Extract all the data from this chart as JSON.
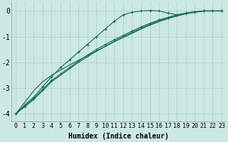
{
  "xlabel": "Humidex (Indice chaleur)",
  "background_color": "#cce8e4",
  "grid_color": "#aacccc",
  "line_color": "#1a6b5a",
  "x_data": [
    0,
    1,
    2,
    3,
    4,
    5,
    6,
    7,
    8,
    9,
    10,
    11,
    12,
    13,
    14,
    15,
    16,
    17,
    18,
    19,
    20,
    21,
    22,
    23
  ],
  "line_steep": [
    -4.0,
    -3.65,
    -3.35,
    -2.95,
    -2.55,
    -2.2,
    -1.9,
    -1.6,
    -1.3,
    -1.0,
    -0.7,
    -0.4,
    -0.15,
    -0.05,
    0.0,
    0.02,
    0.0,
    -0.08,
    -0.15,
    -0.1,
    -0.05,
    0.0,
    0.0,
    0.0
  ],
  "line_linear1": [
    -4.0,
    -3.7,
    -3.4,
    -3.05,
    -2.7,
    -2.45,
    -2.2,
    -1.95,
    -1.72,
    -1.5,
    -1.3,
    -1.12,
    -0.95,
    -0.78,
    -0.62,
    -0.48,
    -0.35,
    -0.25,
    -0.15,
    -0.08,
    -0.03,
    0.0,
    0.0,
    0.0
  ],
  "line_linear2": [
    -4.0,
    -3.72,
    -3.44,
    -3.1,
    -2.75,
    -2.5,
    -2.25,
    -2.0,
    -1.78,
    -1.57,
    -1.37,
    -1.18,
    -1.0,
    -0.83,
    -0.67,
    -0.52,
    -0.38,
    -0.27,
    -0.17,
    -0.09,
    -0.04,
    0.0,
    0.0,
    0.0
  ],
  "line_low": [
    -4.0,
    -3.55,
    -3.1,
    -2.75,
    -2.5,
    -2.3,
    -2.1,
    -1.92,
    -1.74,
    -1.56,
    -1.38,
    -1.2,
    -1.03,
    -0.87,
    -0.7,
    -0.55,
    -0.42,
    -0.3,
    -0.2,
    -0.11,
    -0.05,
    0.0,
    0.0,
    0.0
  ],
  "xlim": [
    -0.5,
    23.5
  ],
  "ylim": [
    -4.3,
    0.35
  ],
  "xticks": [
    0,
    1,
    2,
    3,
    4,
    5,
    6,
    7,
    8,
    9,
    10,
    11,
    12,
    13,
    14,
    15,
    16,
    17,
    18,
    19,
    20,
    21,
    22,
    23
  ],
  "yticks": [
    0,
    -1,
    -2,
    -3,
    -4
  ],
  "fontsize_tick": 6,
  "fontsize_xlabel": 7
}
